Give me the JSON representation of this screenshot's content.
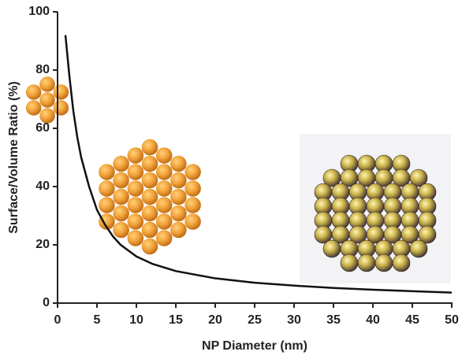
{
  "chart_data": {
    "type": "line",
    "x_label": "NP Diameter (nm)",
    "y_label": "Surface/Volume Ratio (%)",
    "x": [
      1,
      1.5,
      2,
      2.5,
      3,
      4,
      5,
      6,
      7,
      8,
      10,
      12,
      15,
      20,
      25,
      30,
      35,
      40,
      45,
      50
    ],
    "series": [
      {
        "color": "#111111",
        "values": [
          92,
          78,
          66,
          57,
          50,
          40,
          32,
          27,
          23,
          20,
          16,
          13.5,
          11,
          8.5,
          7,
          6,
          5.2,
          4.6,
          4.1,
          3.6
        ]
      }
    ],
    "xlim": [
      0,
      50
    ],
    "xticks": [
      0,
      5,
      10,
      15,
      20,
      25,
      30,
      35,
      40,
      45,
      50
    ],
    "ylim": [
      0,
      100
    ],
    "yticks": [
      0,
      20,
      40,
      60,
      80,
      100
    ],
    "grid": false
  }
}
